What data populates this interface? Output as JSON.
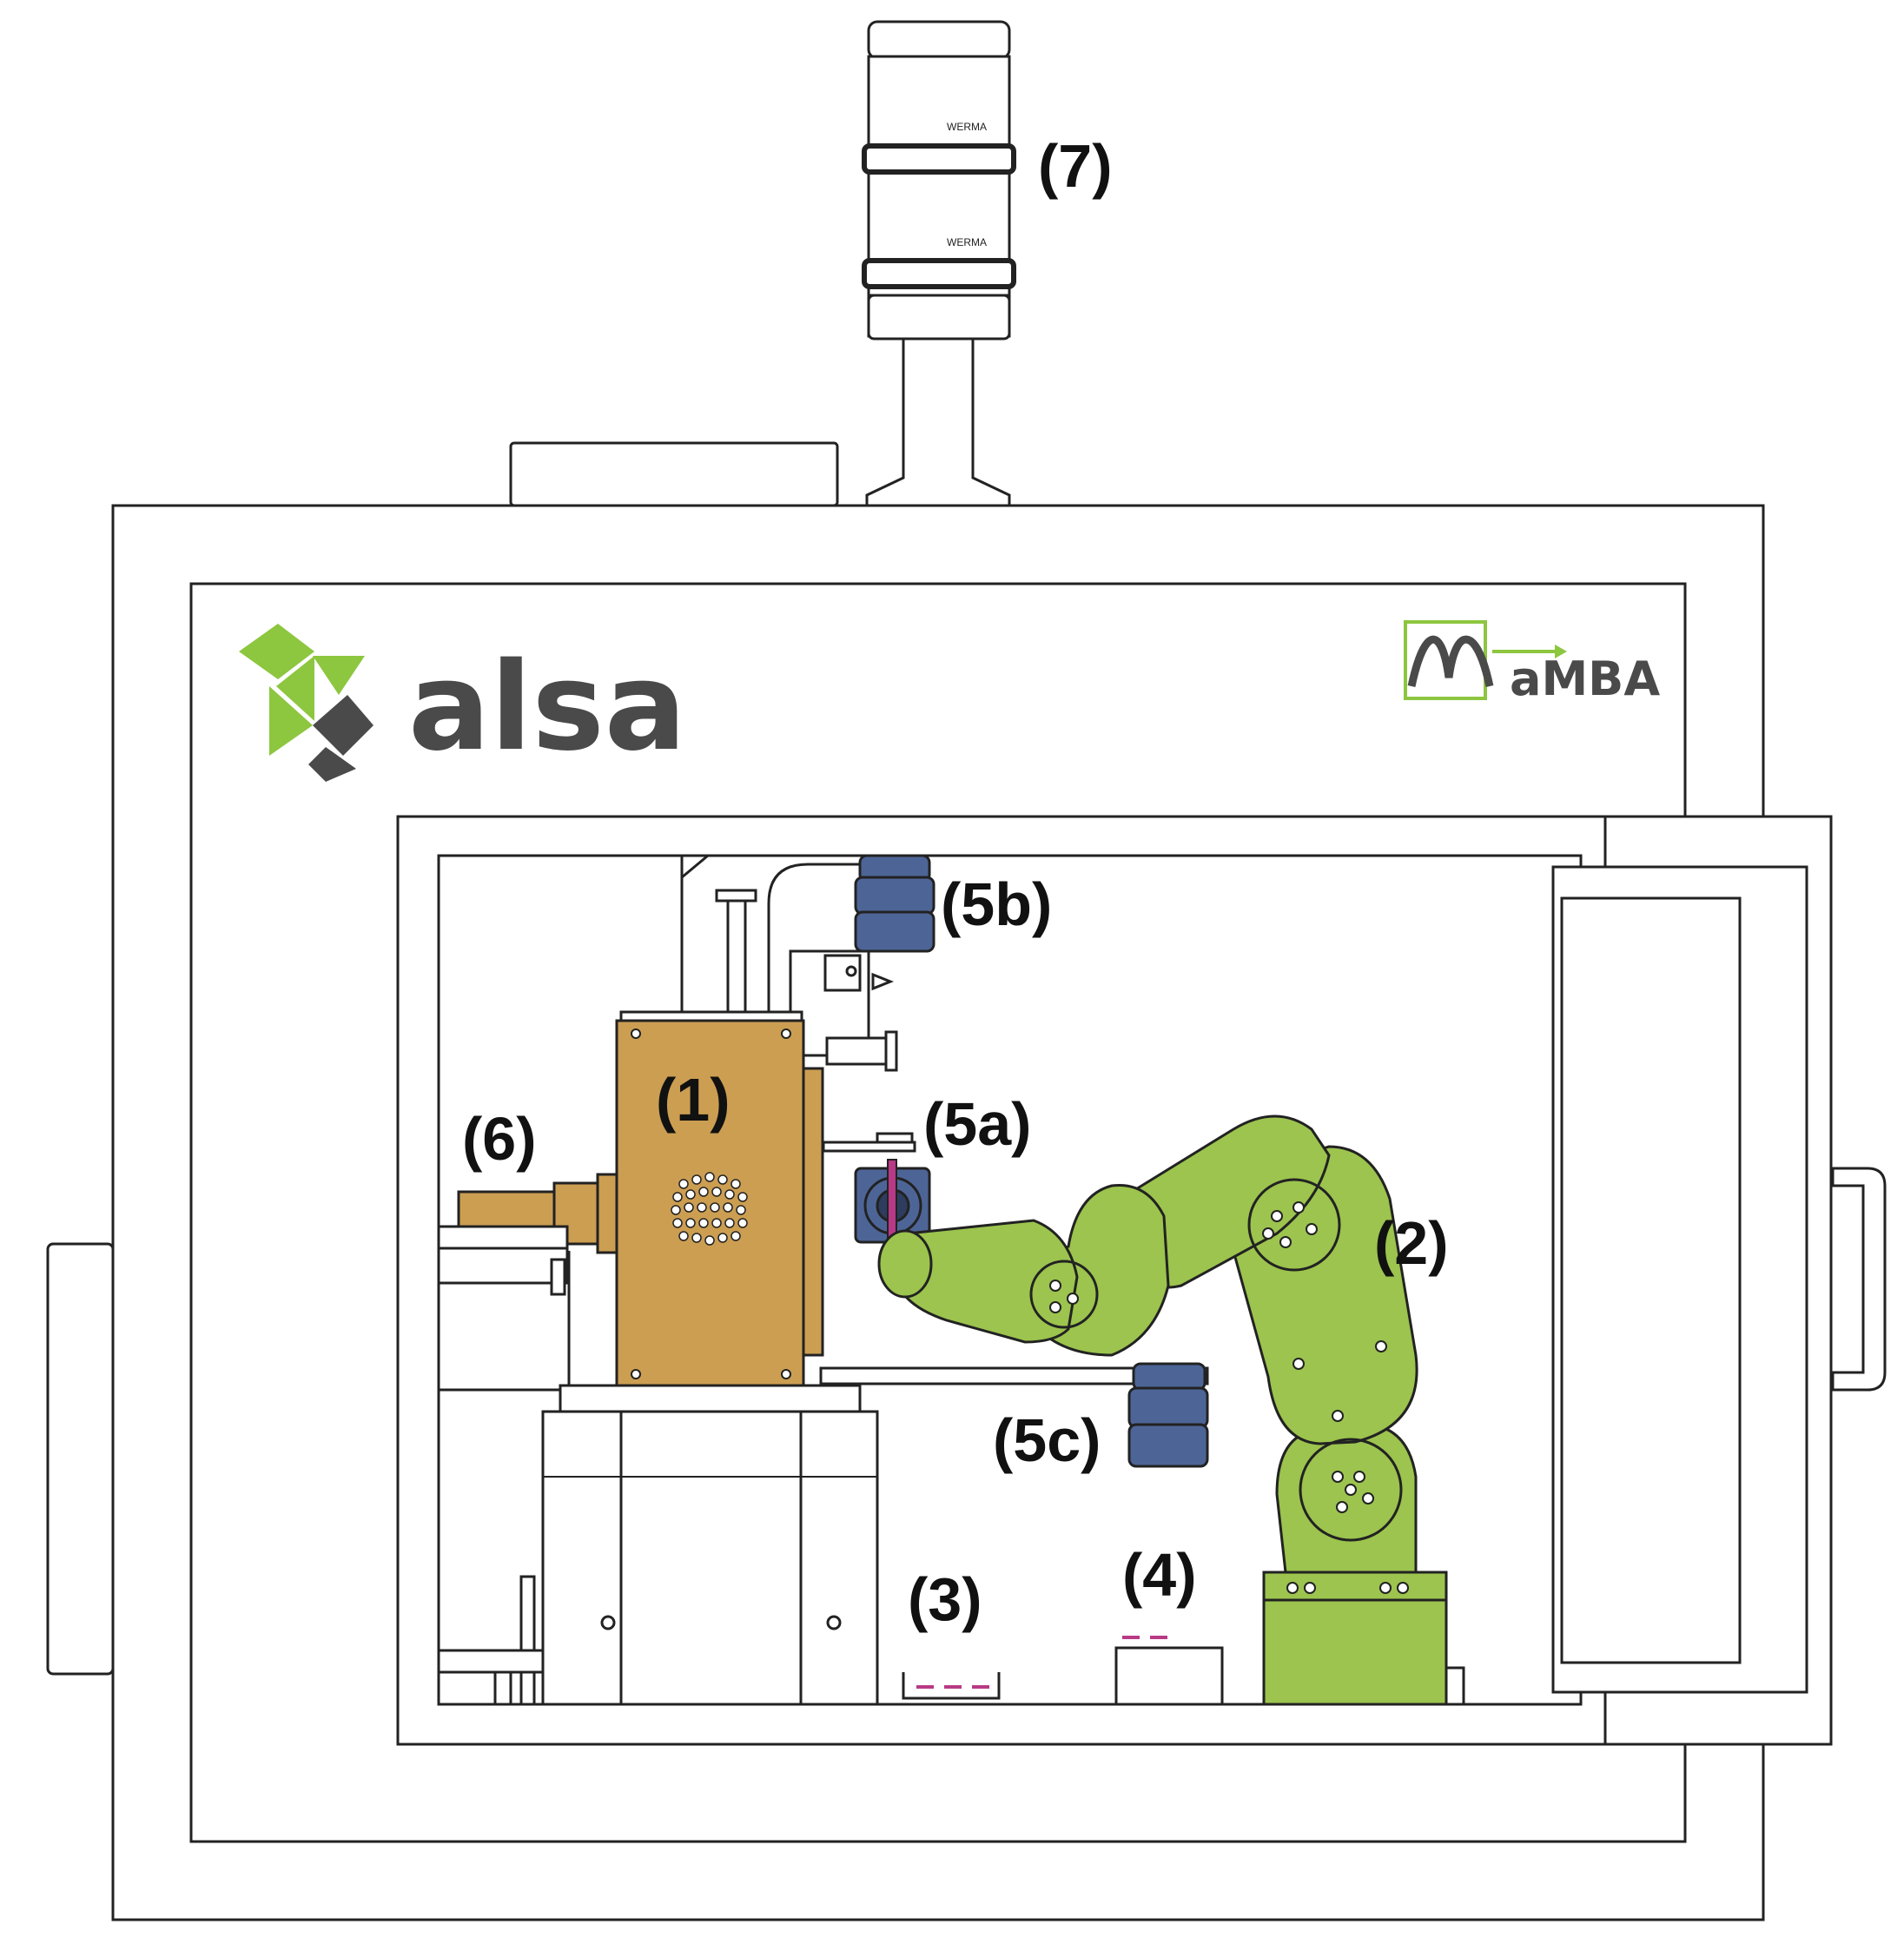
{
  "logos": {
    "alsa": "alsa",
    "mamba": "aMBA"
  },
  "labels": {
    "furnace": "(1)",
    "robot_arm": "(2)",
    "crucible_left": "(3)",
    "crucible_right": "(4)",
    "gripper_a": "(5a)",
    "gripper_b": "(5b)",
    "gripper_c": "(5c)",
    "feeder": "(6)",
    "signal_tower": "(7)"
  },
  "colors": {
    "alsa_green": "#8dc63f",
    "alsa_grey": "#4a4a4a",
    "furnace_gold": "#cc9e52",
    "robot_green": "#9cc44e",
    "gripper_blue": "#4d6596",
    "sample_pink": "#b83a86"
  },
  "icons": [
    "alsa-logo-icon",
    "mamba-logo-icon",
    "signal-tower-icon",
    "robot-arm-icon",
    "furnace-icon"
  ]
}
